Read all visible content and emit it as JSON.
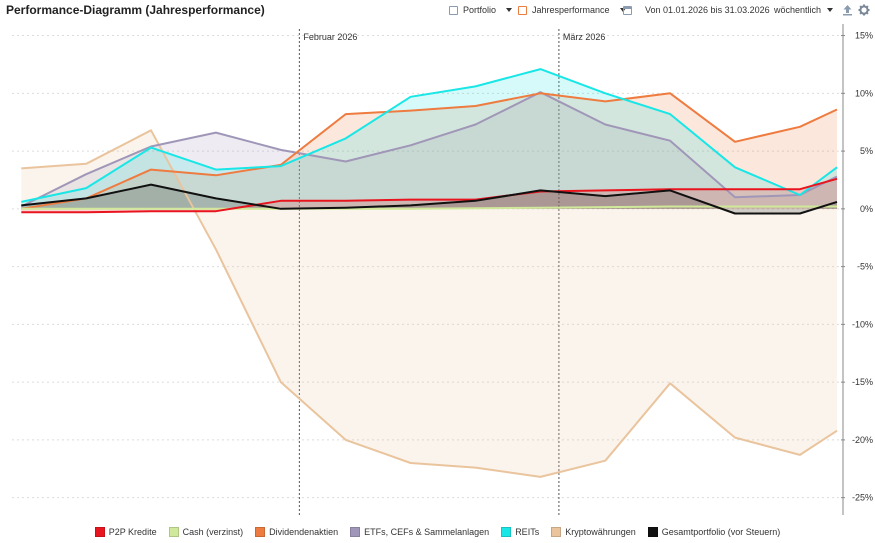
{
  "header": {
    "title": "Performance-Diagramm (Jahresperformance)",
    "portfolio_label": "Portfolio",
    "mode_label": "Jahresperformance",
    "range_label": "Von 01.01.2026 bis 31.03.2026",
    "interval_label": "wöchentlich"
  },
  "chart_data": {
    "type": "area",
    "x": [
      "2026-01-02",
      "2026-01-09",
      "2026-01-16",
      "2026-01-23",
      "2026-01-30",
      "2026-02-06",
      "2026-02-13",
      "2026-02-20",
      "2026-02-27",
      "2026-03-06",
      "2026-03-13",
      "2026-03-20",
      "2026-03-27",
      "2026-03-31"
    ],
    "month_markers": [
      {
        "date": "2026-02-01",
        "label": "Februar 2026"
      },
      {
        "date": "2026-03-01",
        "label": "März 2026"
      }
    ],
    "xlim": [
      "2026-01-01",
      "2026-03-31"
    ],
    "ylim": [
      -26.5,
      16
    ],
    "yticks": [
      15,
      10,
      5,
      0,
      -5,
      -10,
      -15,
      -20,
      -25
    ],
    "ytick_labels": [
      "15%",
      "10%",
      "5%",
      "0%",
      "-5%",
      "-10%",
      "-15%",
      "-20%",
      "-25%"
    ],
    "yaxis_position": "right",
    "grid": true,
    "legend_position": "bottom",
    "series": [
      {
        "name": "Kryptowährungen",
        "color": "#e9c49d",
        "values": [
          3.5,
          3.9,
          6.8,
          -3.5,
          -15.0,
          -20.0,
          -22.0,
          -22.4,
          -23.2,
          -21.8,
          -15.1,
          -19.8,
          -21.3,
          -19.2
        ]
      },
      {
        "name": "ETFs, CEFs & Sammelanlagen",
        "color": "#a097b8",
        "values": [
          0.2,
          3.0,
          5.4,
          6.6,
          5.1,
          4.1,
          5.5,
          7.3,
          10.1,
          7.3,
          5.9,
          1.0,
          1.2,
          2.8
        ]
      },
      {
        "name": "Dividendenaktien",
        "color": "#ee7b3f",
        "values": [
          0.0,
          0.9,
          3.4,
          2.9,
          3.8,
          8.2,
          8.5,
          8.9,
          10.0,
          9.3,
          10.0,
          5.8,
          7.1,
          8.6
        ]
      },
      {
        "name": "REITs",
        "color": "#19e6e6",
        "values": [
          0.6,
          1.8,
          5.3,
          3.4,
          3.7,
          6.1,
          9.7,
          10.6,
          12.1,
          10.0,
          8.2,
          3.6,
          1.2,
          3.6
        ]
      },
      {
        "name": "Cash (verzinst)",
        "color": "#cfe89a",
        "values": [
          0.0,
          0.0,
          0.0,
          0.0,
          0.0,
          0.0,
          0.0,
          0.05,
          0.1,
          0.15,
          0.2,
          0.2,
          0.2,
          0.2
        ]
      },
      {
        "name": "P2P Kredite",
        "color": "#e8141e",
        "values": [
          -0.3,
          -0.3,
          -0.2,
          -0.2,
          0.7,
          0.7,
          0.8,
          0.8,
          1.5,
          1.6,
          1.7,
          1.7,
          1.7,
          2.6
        ]
      },
      {
        "name": "Gesamtportfolio (vor Steuern)",
        "color": "#111111",
        "values": [
          0.3,
          0.9,
          2.1,
          0.9,
          0.0,
          0.1,
          0.3,
          0.7,
          1.6,
          1.1,
          1.6,
          -0.4,
          -0.4,
          0.6
        ]
      }
    ],
    "legend": [
      {
        "name": "P2P Kredite",
        "color": "#e8141e"
      },
      {
        "name": "Cash (verzinst)",
        "color": "#cfe89a"
      },
      {
        "name": "Dividendenaktien",
        "color": "#ee7b3f"
      },
      {
        "name": "ETFs, CEFs & Sammelanlagen",
        "color": "#a097b8"
      },
      {
        "name": "REITs",
        "color": "#19e6e6"
      },
      {
        "name": "Kryptowährungen",
        "color": "#e9c49d"
      },
      {
        "name": "Gesamtportfolio (vor Steuern)",
        "color": "#111111"
      }
    ]
  }
}
